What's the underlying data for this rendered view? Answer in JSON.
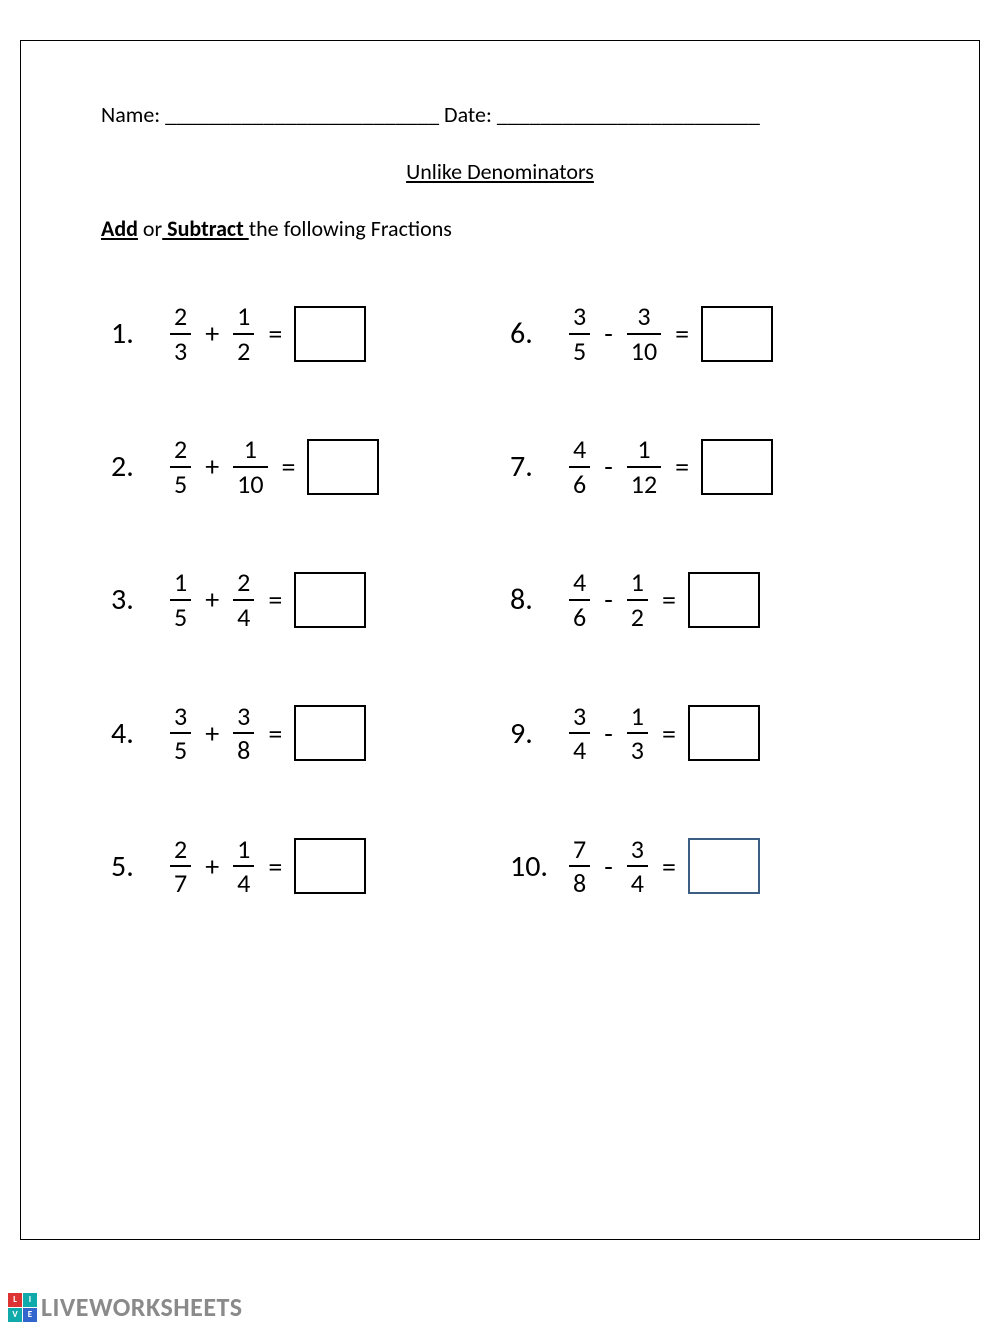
{
  "header": {
    "name_label": "Name:",
    "name_blank": " _________________________",
    "date_label": " Date:",
    "date_blank": " ________________________"
  },
  "title": "Unlike Denominators",
  "instruction": {
    "part1": "Add",
    "part2": " or",
    "part3": " Subtract ",
    "part4": "the following Fractions"
  },
  "problems": [
    {
      "n": "1.",
      "a_num": "2",
      "a_den": "3",
      "op": "+",
      "b_num": "1",
      "b_den": "2",
      "box_blue": false
    },
    {
      "n": "2.",
      "a_num": "2",
      "a_den": "5",
      "op": "+",
      "b_num": "1",
      "b_den": "10",
      "box_blue": false
    },
    {
      "n": "3.",
      "a_num": "1",
      "a_den": "5",
      "op": "+",
      "b_num": "2",
      "b_den": "4",
      "box_blue": false
    },
    {
      "n": "4.",
      "a_num": "3",
      "a_den": "5",
      "op": "+",
      "b_num": "3",
      "b_den": "8",
      "box_blue": false
    },
    {
      "n": "5.",
      "a_num": "2",
      "a_den": "7",
      "op": "+",
      "b_num": "1",
      "b_den": "4",
      "box_blue": false
    },
    {
      "n": "6.",
      "a_num": "3",
      "a_den": "5",
      "op": "-",
      "b_num": "3",
      "b_den": "10",
      "box_blue": false
    },
    {
      "n": "7.",
      "a_num": "4",
      "a_den": "6",
      "op": "-",
      "b_num": "1",
      "b_den": "12",
      "box_blue": false
    },
    {
      "n": "8.",
      "a_num": "4",
      "a_den": "6",
      "op": "-",
      "b_num": "1",
      "b_den": "2",
      "box_blue": false
    },
    {
      "n": "9.",
      "a_num": "3",
      "a_den": "4",
      "op": "-",
      "b_num": "1",
      "b_den": "3",
      "box_blue": false
    },
    {
      "n": "10.",
      "a_num": "7",
      "a_den": "8",
      "op": "-",
      "b_num": "3",
      "b_den": "4",
      "box_blue": true
    }
  ],
  "equals": "=",
  "footer": {
    "logo_text": "LIVEWORKSHEETS",
    "cells": [
      "L",
      "I",
      "V",
      "E"
    ]
  }
}
